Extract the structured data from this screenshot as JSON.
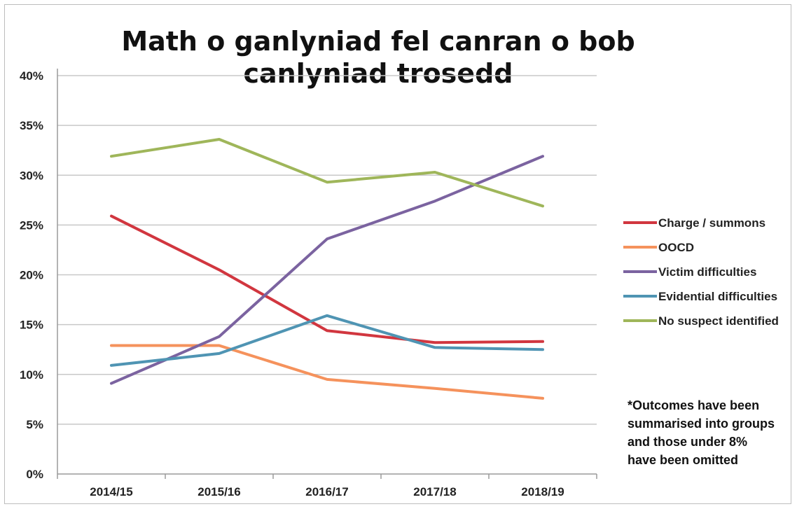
{
  "chart_data": {
    "type": "line",
    "title_lines": [
      "Math o ganlyniad fel canran o bob",
      "canlyniad trosedd"
    ],
    "categories": [
      "2014/15",
      "2015/16",
      "2016/17",
      "2017/18",
      "2018/19"
    ],
    "y_ticks": [
      "0%",
      "5%",
      "10%",
      "15%",
      "20%",
      "25%",
      "30%",
      "35%",
      "40%"
    ],
    "ylim": [
      0,
      40
    ],
    "grid": true,
    "legend_position": "right",
    "series": [
      {
        "name": "Charge / summons",
        "color": "#d1363f",
        "values": [
          25.9,
          20.5,
          14.4,
          13.2,
          13.3
        ]
      },
      {
        "name": "OOCD",
        "color": "#f5925c",
        "values": [
          12.9,
          12.9,
          9.5,
          8.6,
          7.6
        ]
      },
      {
        "name": "Victim difficulties",
        "color": "#7b63a0",
        "values": [
          9.1,
          13.8,
          23.6,
          27.4,
          31.9
        ]
      },
      {
        "name": "Evidential difficulties",
        "color": "#4f94b3",
        "values": [
          10.9,
          12.1,
          15.9,
          12.7,
          12.5
        ]
      },
      {
        "name": "No suspect identified",
        "color": "#9fb65a",
        "values": [
          31.9,
          33.6,
          29.3,
          30.3,
          26.9
        ]
      }
    ],
    "note_lines": [
      "*Outcomes have been",
      "summarised into groups",
      "and those under 8%",
      "have been omitted"
    ]
  }
}
